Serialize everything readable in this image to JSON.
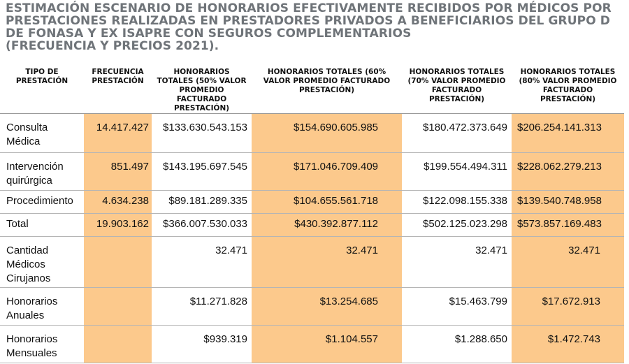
{
  "title": {
    "line1": "ESTIMACIÓN ESCENARIO DE HONORARIOS EFECTIVAMENTE RECIBIDOS POR MÉDICOS POR",
    "line2": "PRESTACIONES REALIZADAS EN PRESTADORES PRIVADOS A BENEFICIARIOS DEL GRUPO D",
    "line3": "DE FONASA Y EX ISAPRE CON SEGUROS COMPLEMENTARIOS",
    "line4": "(FRECUENCIA Y PRECIOS 2021)."
  },
  "headers": [
    "TIPO DE PRESTACIÓN",
    "FRECUENCIA PRESTACIÓN",
    "HONORARIOS TOTALES (50% VALOR PROMEDIO FACTURADO PRESTACIÓN)",
    "HONORARIOS TOTALES (60% VALOR PROMEDIO FACTURADO PRESTACIÓN)",
    "HONORARIOS TOTALES (70% VALOR PROMEDIO FACTURADO PRESTACIÓN)",
    "HONORARIOS TOTALES (80% VALOR PROMEDIO FACTURADO PRESTACIÓN)"
  ],
  "rows": [
    [
      "Consulta Médica",
      "14.417.427",
      "$133.630.543.153",
      "$154.690.605.985",
      "$180.472.373.649",
      "$206.254.141.313"
    ],
    [
      "Intervención quirúrgica",
      "851.497",
      "$143.195.697.545",
      "$171.046.709.409",
      "$199.554.494.311",
      "$228.062.279.213"
    ],
    [
      "Procedimiento",
      "4.634.238",
      "$89.181.289.335",
      "$104.655.561.718",
      "$122.098.155.338",
      "$139.540.748.958"
    ],
    [
      "Total",
      "19.903.162",
      "$366.007.530.033",
      "$430.392.877.112",
      "$502.125.023.298",
      "$573.857.169.483"
    ],
    [
      "Cantidad Médicos Cirujanos",
      "",
      "32.471",
      "32.471",
      "32.471",
      "32.471"
    ],
    [
      "Honorarios Anuales",
      "",
      "$11.271.828",
      "$13.254.685",
      "$15.463.799",
      "$17.672.913"
    ],
    [
      "Honorarios Mensuales",
      "",
      "$939.319",
      "$1.104.557",
      "$1.288.650",
      "$1.472.743"
    ]
  ],
  "colors": {
    "title": "#6f7479",
    "highlight": "#fcc98c"
  }
}
